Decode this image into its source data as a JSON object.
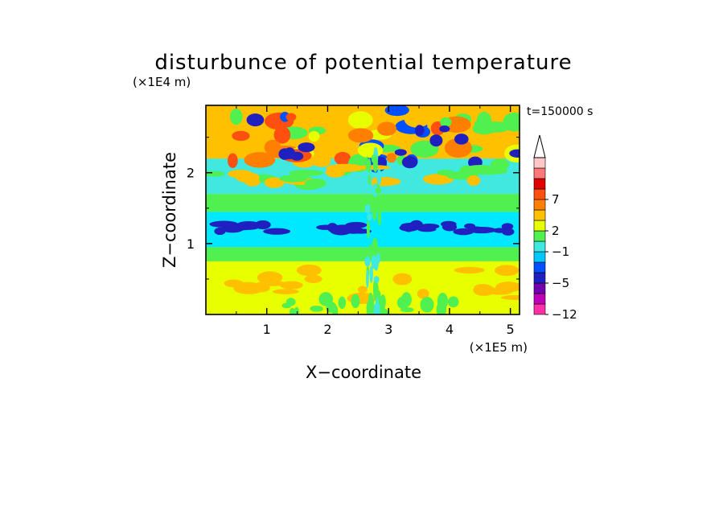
{
  "chart_data": {
    "type": "heatmap",
    "title": "disturbunce of potential temperature",
    "xlabel": "X−coordinate",
    "ylabel": "Z−coordinate",
    "x_unit": "(×1E5 m)",
    "y_unit": "(×1E4 m)",
    "time_label": "t=150000 s",
    "xlim": [
      0,
      5.15
    ],
    "ylim": [
      0,
      2.95
    ],
    "xticks": [
      1,
      2,
      3,
      4,
      5
    ],
    "yticks": [
      1,
      2
    ],
    "grid": false,
    "legend": "colorbar-right",
    "colorbar": {
      "labeled_values": [
        "7",
        "2",
        "−1",
        "−5",
        "−12"
      ],
      "colors": [
        "#ff30a8",
        "#c000b8",
        "#7000b0",
        "#2020c0",
        "#0050ff",
        "#00c8ff",
        "#40e8e0",
        "#50f050",
        "#e8ff00",
        "#ffc000",
        "#ff8000",
        "#ff5010",
        "#e00000",
        "#ff7878",
        "#ffc8c8"
      ],
      "extend_top": true
    },
    "bands": [
      {
        "z_from": 0.0,
        "z_to": 0.75,
        "dominant": "yellow",
        "color": "#e8ff00"
      },
      {
        "z_from": 0.75,
        "z_to": 0.95,
        "dominant": "green",
        "color": "#50f050"
      },
      {
        "z_from": 0.95,
        "z_to": 1.45,
        "dominant": "cyan",
        "color": "#00e8ff"
      },
      {
        "z_from": 1.45,
        "z_to": 1.7,
        "dominant": "green",
        "color": "#50f050"
      },
      {
        "z_from": 1.7,
        "z_to": 2.2,
        "dominant": "cyan",
        "color": "#40e8e0"
      },
      {
        "z_from": 2.2,
        "z_to": 2.95,
        "dominant": "orange",
        "color": "#ffc000"
      }
    ]
  }
}
